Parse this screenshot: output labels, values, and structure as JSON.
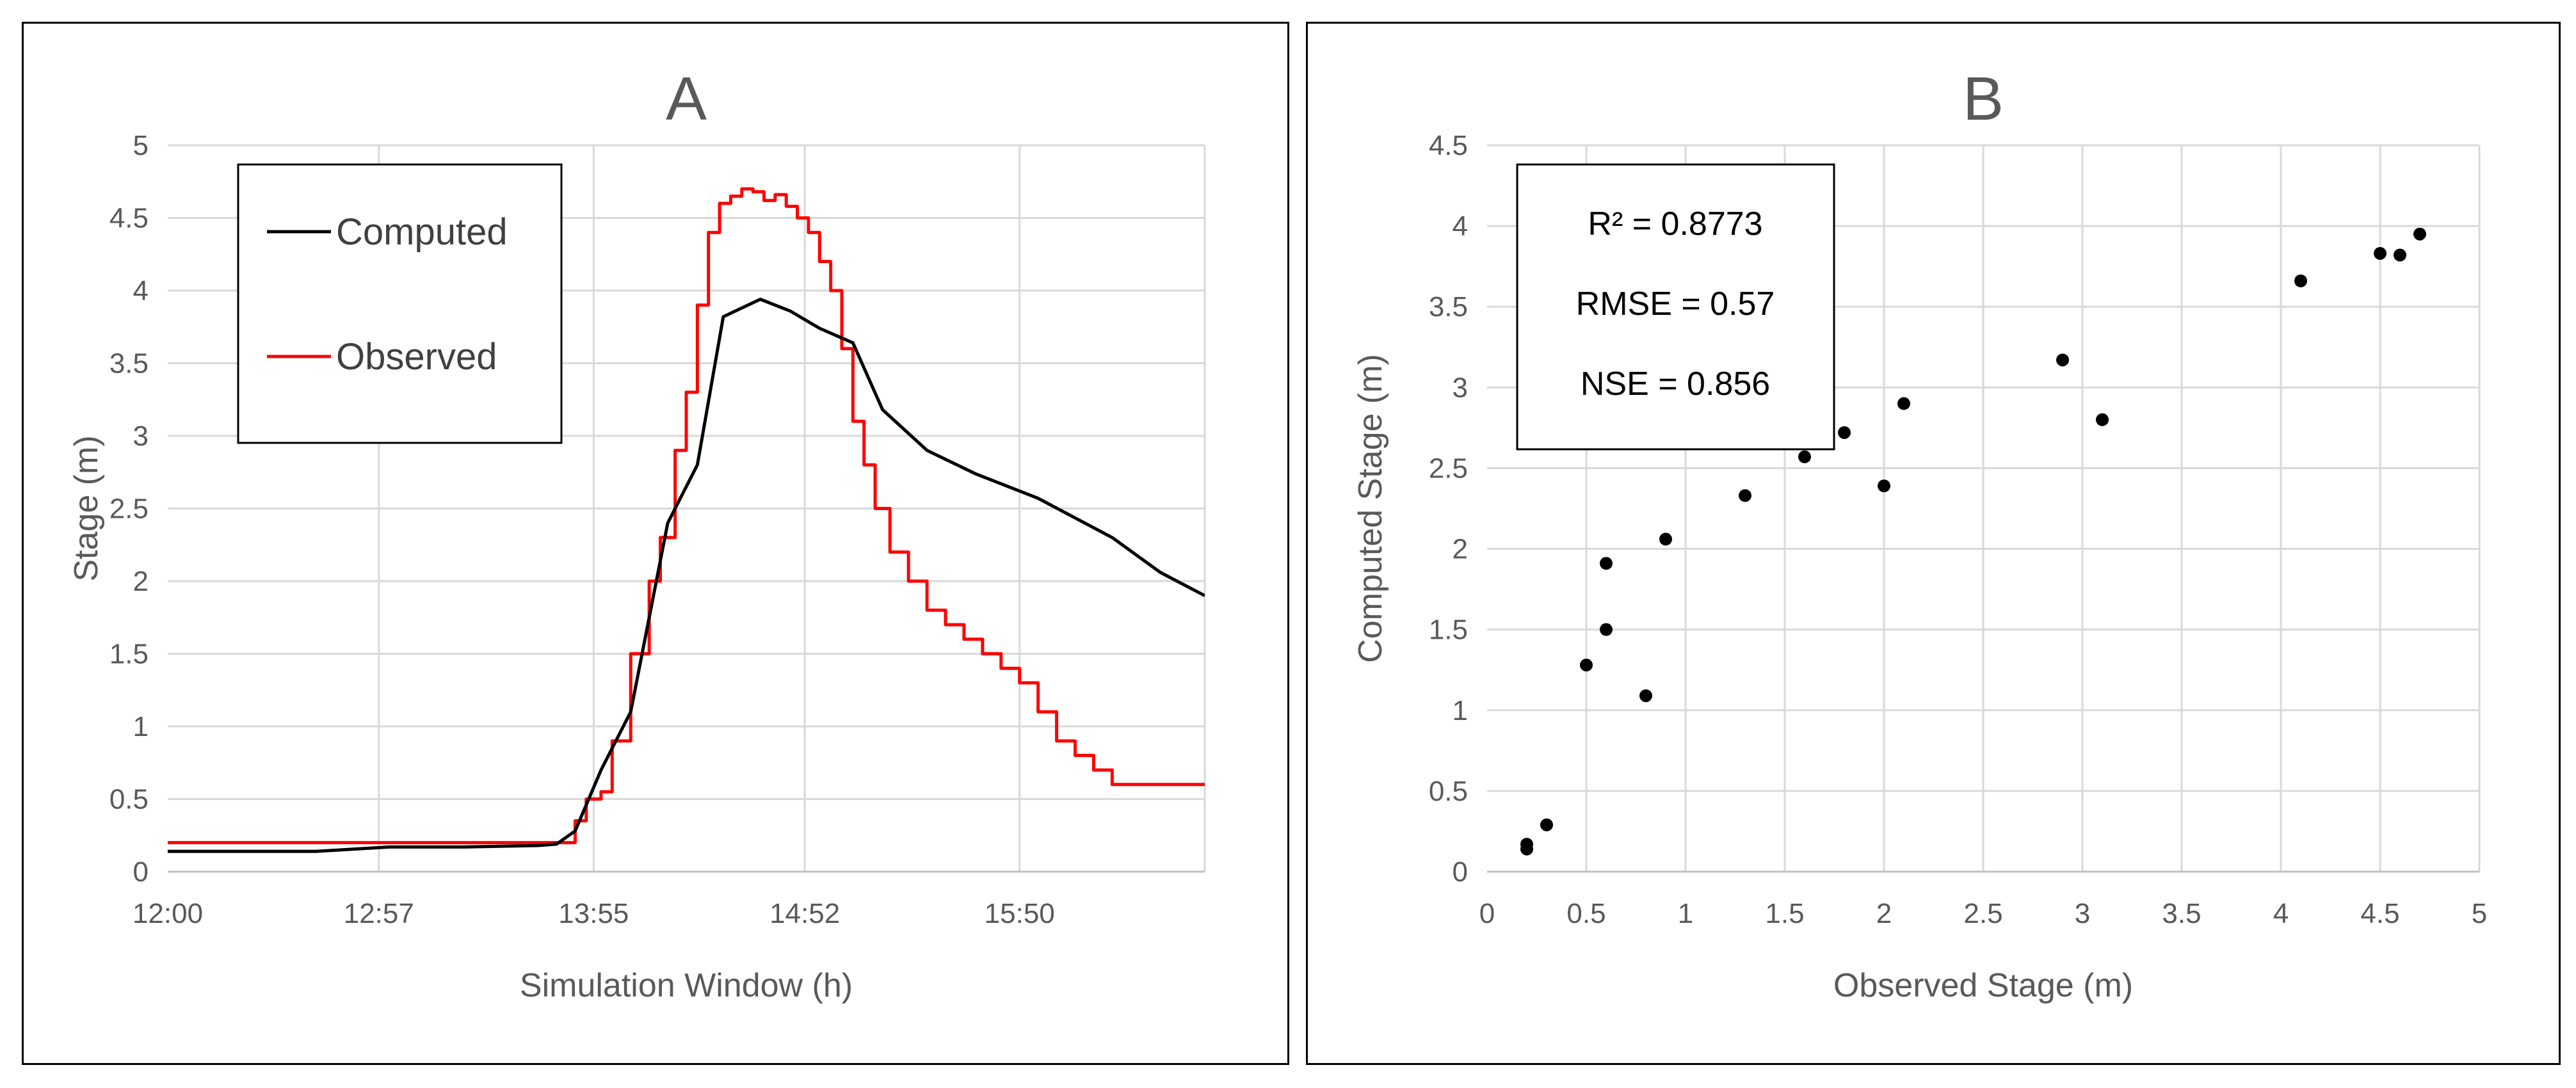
{
  "panels": [
    {
      "title": "A",
      "legend": [
        {
          "label": "Computed",
          "color": "#000000"
        },
        {
          "label": "Observed",
          "color": "#ff0000"
        }
      ]
    },
    {
      "title": "B",
      "stats": [
        "R² = 0.8773",
        "RMSE = 0.57",
        "NSE = 0.856"
      ]
    }
  ],
  "chart_data": [
    {
      "type": "line",
      "title": "A",
      "xlabel": "Simulation Window (h)",
      "ylabel": "Stage (m)",
      "xlim_minutes": [
        0,
        280
      ],
      "ylim": [
        0,
        5
      ],
      "yticks": [
        0,
        0.5,
        1,
        1.5,
        2,
        2.5,
        3,
        3.5,
        4,
        4.5,
        5
      ],
      "xticks": [
        {
          "label": "12:00",
          "minutes": 0
        },
        {
          "label": "12:57",
          "minutes": 57
        },
        {
          "label": "13:55",
          "minutes": 115
        },
        {
          "label": "14:52",
          "minutes": 172
        },
        {
          "label": "15:50",
          "minutes": 230
        }
      ],
      "grid": true,
      "legend_position": "top-left",
      "series": [
        {
          "name": "Computed",
          "color": "#000000",
          "x_minutes": [
            0,
            10,
            20,
            40,
            60,
            80,
            100,
            105,
            110,
            117,
            125,
            135,
            143,
            150,
            160,
            168,
            176,
            185,
            193,
            205,
            218,
            235,
            255,
            268,
            280
          ],
          "values": [
            0.14,
            0.14,
            0.14,
            0.14,
            0.17,
            0.17,
            0.18,
            0.19,
            0.28,
            0.7,
            1.1,
            2.4,
            2.8,
            3.82,
            3.94,
            3.86,
            3.74,
            3.64,
            3.18,
            2.9,
            2.74,
            2.57,
            2.3,
            2.06,
            1.9
          ]
        },
        {
          "name": "Observed",
          "color": "#ff0000",
          "x_minutes": [
            0,
            107,
            110,
            113,
            117,
            120,
            125,
            130,
            133,
            137,
            140,
            143,
            146,
            149,
            152,
            155,
            158,
            161,
            164,
            167,
            170,
            173,
            176,
            179,
            182,
            185,
            188,
            191,
            195,
            200,
            205,
            210,
            215,
            220,
            225,
            230,
            235,
            240,
            245,
            250,
            255,
            260,
            265,
            270,
            275,
            280
          ],
          "values": [
            0.2,
            0.2,
            0.35,
            0.5,
            0.55,
            0.9,
            1.5,
            2.0,
            2.3,
            2.9,
            3.3,
            3.9,
            4.4,
            4.6,
            4.65,
            4.7,
            4.68,
            4.62,
            4.66,
            4.58,
            4.5,
            4.4,
            4.2,
            4.0,
            3.6,
            3.1,
            2.8,
            2.5,
            2.2,
            2.0,
            1.8,
            1.7,
            1.6,
            1.5,
            1.4,
            1.3,
            1.1,
            0.9,
            0.8,
            0.7,
            0.6,
            0.6,
            0.6,
            0.6,
            0.6,
            0.6
          ]
        }
      ]
    },
    {
      "type": "scatter",
      "title": "B",
      "xlabel": "Observed Stage (m)",
      "ylabel": "Computed Stage (m)",
      "xlim": [
        0,
        5
      ],
      "ylim": [
        0,
        4.5
      ],
      "xticks": [
        0,
        0.5,
        1,
        1.5,
        2,
        2.5,
        3,
        3.5,
        4,
        4.5,
        5
      ],
      "yticks": [
        0,
        0.5,
        1,
        1.5,
        2,
        2.5,
        3,
        3.5,
        4,
        4.5
      ],
      "grid": true,
      "annotation_position": "top-left",
      "points": [
        {
          "x": 0.2,
          "y": 0.14
        },
        {
          "x": 0.2,
          "y": 0.17
        },
        {
          "x": 0.3,
          "y": 0.29
        },
        {
          "x": 0.5,
          "y": 1.28
        },
        {
          "x": 0.6,
          "y": 1.5
        },
        {
          "x": 0.6,
          "y": 1.91
        },
        {
          "x": 0.8,
          "y": 1.09
        },
        {
          "x": 0.9,
          "y": 2.06
        },
        {
          "x": 1.3,
          "y": 2.33
        },
        {
          "x": 1.6,
          "y": 2.57
        },
        {
          "x": 1.8,
          "y": 2.72
        },
        {
          "x": 2.0,
          "y": 2.39
        },
        {
          "x": 2.1,
          "y": 2.9
        },
        {
          "x": 2.9,
          "y": 3.17
        },
        {
          "x": 3.1,
          "y": 2.8
        },
        {
          "x": 4.1,
          "y": 3.66
        },
        {
          "x": 4.5,
          "y": 3.83
        },
        {
          "x": 4.6,
          "y": 3.82
        },
        {
          "x": 4.7,
          "y": 3.95
        }
      ]
    }
  ]
}
